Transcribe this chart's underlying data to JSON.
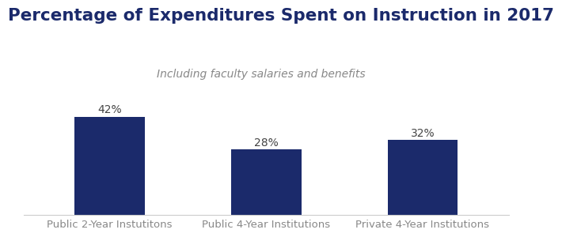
{
  "title": "Percentage of Expenditures Spent on Instruction in 2017",
  "subtitle": "Including faculty salaries and benefits",
  "categories": [
    "Public 2-Year Instutitons",
    "Public 4-Year Institutions",
    "Private 4-Year Institutions"
  ],
  "values": [
    42,
    28,
    32
  ],
  "bar_color": "#1B2A6B",
  "title_color": "#1B2A6B",
  "subtitle_color": "#888888",
  "tick_color": "#888888",
  "value_label_color": "#444444",
  "value_labels": [
    "42%",
    "28%",
    "32%"
  ],
  "ylim": [
    0,
    50
  ],
  "background_color": "#ffffff",
  "title_fontsize": 15.5,
  "subtitle_fontsize": 10,
  "bar_width": 0.45,
  "value_fontsize": 10,
  "xlabel_fontsize": 9.5
}
